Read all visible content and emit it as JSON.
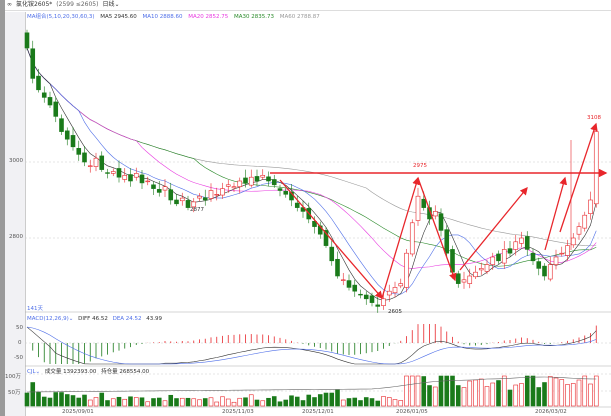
{
  "header": {
    "title": "氯化铵2605*",
    "subtitle": "(2599 ≤2605)",
    "period": "日线",
    "period_icon": "chevron-down-icon"
  },
  "ma_legend": {
    "label": "MA组合(5,10,20,30,60,3)",
    "ma5": "MA5 2945.60",
    "ma10": "MA10 2888.60",
    "ma20": "MA20 2852.75",
    "ma30": "MA30 2835.73",
    "ma60": "MA60 2788.87"
  },
  "colors": {
    "up": "#e8262b",
    "down": "#1a7a1a",
    "ma5": "#333333",
    "ma10": "#4f6fe8",
    "ma20": "#e83ae0",
    "ma30": "#2a8a2a",
    "ma60": "#999999",
    "guide": "#e8262b"
  },
  "annotations": {
    "low1": "2877",
    "high1": "2975",
    "low2": "2605",
    "high2": "3108"
  },
  "count_label": "141天",
  "macd": {
    "label": "MACD(12,26,9)",
    "dif": "DIFF 46.52",
    "dea": "DEA 24.52",
    "macd": "43.99",
    "ticks": [
      "50",
      "0",
      "-50"
    ]
  },
  "volume": {
    "label": "CJL",
    "vol": "成交量 1392393.00",
    "oi": "持仓量 268554.00",
    "ticks": [
      "100万",
      "50万"
    ]
  },
  "dates": [
    "2025/09/01",
    "2025/11/03",
    "2025/12/01",
    "2026/01/05",
    "2026/03/02"
  ],
  "chart_data": {
    "type": "candlestick",
    "y_ticks": [
      "3000",
      "2800"
    ],
    "close": [
      3300,
      3220,
      3190,
      3170,
      3150,
      3120,
      3080,
      3060,
      3040,
      3020,
      3000,
      2990,
      3010,
      2980,
      2970,
      2975,
      2960,
      2965,
      2950,
      2970,
      2945,
      2950,
      2930,
      2920,
      2935,
      2900,
      2890,
      2905,
      2880,
      2895,
      2910,
      2900,
      2925,
      2915,
      2930,
      2940,
      2935,
      2950,
      2945,
      2960,
      2950,
      2965,
      2950,
      2940,
      2925,
      2915,
      2900,
      2880,
      2870,
      2850,
      2830,
      2810,
      2780,
      2740,
      2700,
      2690,
      2670,
      2660,
      2650,
      2640,
      2630,
      2620,
      2640,
      2660,
      2670,
      2680,
      2760,
      2840,
      2910,
      2880,
      2850,
      2870,
      2820,
      2760,
      2710,
      2680,
      2690,
      2700,
      2710,
      2720,
      2730,
      2750,
      2740,
      2770,
      2760,
      2790,
      2800,
      2770,
      2740,
      2720,
      2700,
      2730,
      2750,
      2760,
      2780,
      2800,
      2830,
      2860,
      2900,
      3080
    ]
  }
}
